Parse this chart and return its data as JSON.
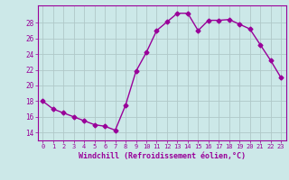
{
  "x": [
    0,
    1,
    2,
    3,
    4,
    5,
    6,
    7,
    8,
    9,
    10,
    11,
    12,
    13,
    14,
    15,
    16,
    17,
    18,
    19,
    20,
    21,
    22,
    23
  ],
  "y": [
    18.0,
    17.0,
    16.5,
    16.0,
    15.5,
    15.0,
    14.8,
    14.3,
    17.5,
    21.8,
    24.2,
    27.0,
    28.1,
    29.2,
    29.2,
    27.0,
    28.3,
    28.3,
    28.4,
    27.8,
    27.2,
    25.2,
    23.2,
    21.0
  ],
  "line_color": "#990099",
  "marker": "D",
  "markersize": 2.5,
  "linewidth": 1.0,
  "bg_color": "#cce8e8",
  "grid_color": "#b0c8c8",
  "xlabel": "Windchill (Refroidissement éolien,°C)",
  "xlabel_color": "#990099",
  "tick_color": "#990099",
  "yticks": [
    14,
    16,
    18,
    20,
    22,
    24,
    26,
    28
  ],
  "ylim": [
    13.0,
    30.2
  ],
  "xlim": [
    -0.5,
    23.5
  ],
  "xticks": [
    0,
    1,
    2,
    3,
    4,
    5,
    6,
    7,
    8,
    9,
    10,
    11,
    12,
    13,
    14,
    15,
    16,
    17,
    18,
    19,
    20,
    21,
    22,
    23
  ],
  "xtick_fontsize": 5.0,
  "ytick_fontsize": 5.5,
  "xlabel_fontsize": 6.0
}
